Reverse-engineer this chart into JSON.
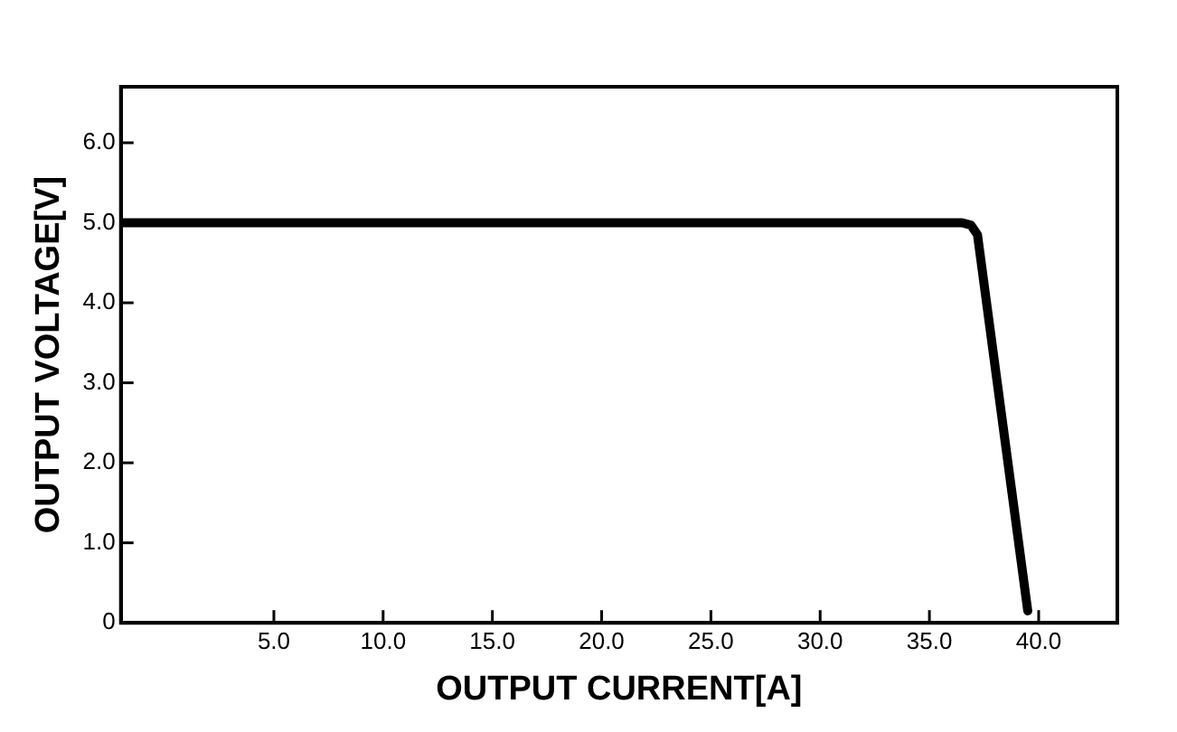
{
  "chart_data": {
    "type": "line",
    "xlabel": "OUTPUT CURRENT[A]",
    "ylabel": "OUTPUT VOLTAGE[V]",
    "x": [
      -2,
      10,
      20,
      30,
      36.5,
      36.9,
      37.2,
      39.5
    ],
    "series": [
      {
        "color": "#000000",
        "values": [
          5.0,
          5.0,
          5.0,
          5.0,
          5.0,
          4.97,
          4.85,
          0.15
        ]
      }
    ],
    "xlim": [
      -2,
      43.6
    ],
    "xticks": [
      {
        "value": 5,
        "label": "5.0"
      },
      {
        "value": 10,
        "label": "10.0"
      },
      {
        "value": 15,
        "label": "15.0"
      },
      {
        "value": 20,
        "label": "20.0"
      },
      {
        "value": 25,
        "label": "25.0"
      },
      {
        "value": 30,
        "label": "30.0"
      },
      {
        "value": 35,
        "label": "35.0"
      },
      {
        "value": 40,
        "label": "40.0"
      }
    ],
    "ylim": [
      0,
      6.7
    ],
    "yticks": [
      0,
      {
        "value": 1,
        "label": "1.0"
      },
      {
        "value": 2,
        "label": "2.0"
      },
      {
        "value": 3,
        "label": "3.0"
      },
      {
        "value": 4,
        "label": "4.0"
      },
      {
        "value": 5,
        "label": "5.0"
      },
      {
        "value": 6,
        "label": "6.0"
      }
    ],
    "grid": false,
    "legend": false,
    "marker": "none",
    "line_style": "solid"
  }
}
